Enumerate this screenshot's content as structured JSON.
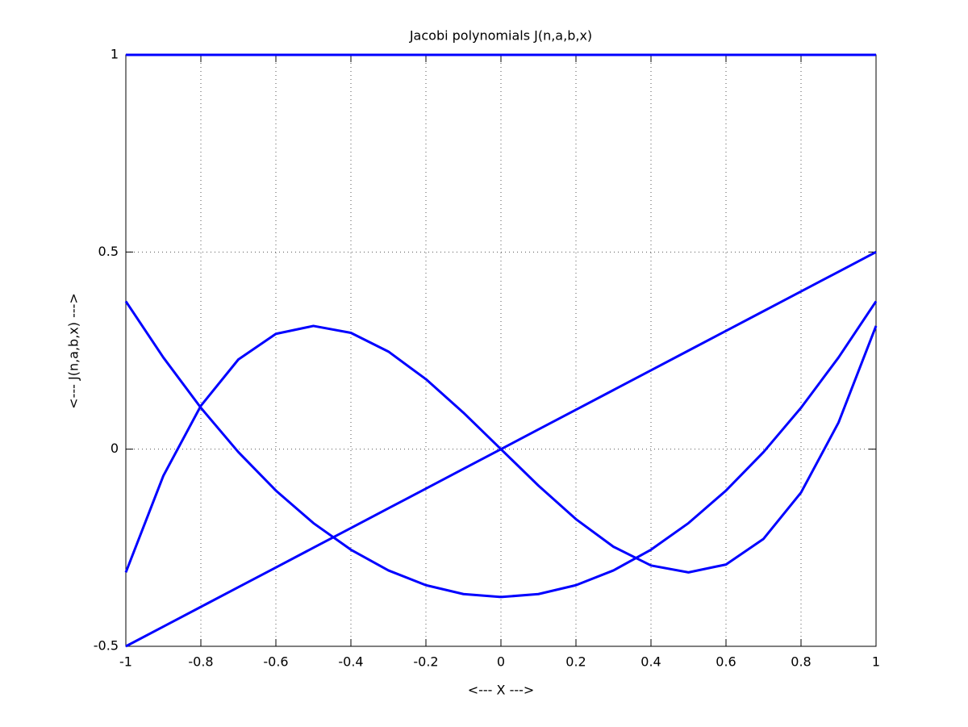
{
  "chart_data": {
    "type": "line",
    "title": "Jacobi polynomials J(n,a,b,x)",
    "x_label": "<--- X --->",
    "y_label": "<--- J(n,a,b,x) --->",
    "x": [
      -1,
      -0.9,
      -0.8,
      -0.7,
      -0.6,
      -0.5,
      -0.4,
      -0.3,
      -0.2,
      -0.1,
      0,
      0.1,
      0.2,
      0.3,
      0.4,
      0.5,
      0.6,
      0.7,
      0.8,
      0.9,
      1
    ],
    "series": [
      {
        "color": "#0000ff",
        "values": [
          1,
          1,
          1,
          1,
          1,
          1,
          1,
          1,
          1,
          1,
          1,
          1,
          1,
          1,
          1,
          1,
          1,
          1,
          1,
          1,
          1
        ]
      },
      {
        "color": "#0000ff",
        "values": [
          -0.5,
          -0.45,
          -0.4,
          -0.35,
          -0.3,
          -0.25,
          -0.2,
          -0.15,
          -0.1,
          -0.05,
          0,
          0.05,
          0.1,
          0.15,
          0.2,
          0.25,
          0.3,
          0.35,
          0.4,
          0.45,
          0.5
        ]
      },
      {
        "color": "#0000ff",
        "values": [
          0.375,
          0.2325,
          0.105,
          -0.0075,
          -0.105,
          -0.1875,
          -0.255,
          -0.3075,
          -0.345,
          -0.3675,
          -0.375,
          -0.3675,
          -0.345,
          -0.3075,
          -0.255,
          -0.1875,
          -0.105,
          -0.0075,
          0.105,
          0.2325,
          0.375
        ]
      },
      {
        "color": "#0000ff",
        "values": [
          -0.3125,
          -0.0675,
          0.11,
          0.2275,
          0.2925,
          0.3125,
          0.295,
          0.2475,
          0.1775,
          0.0925,
          0,
          -0.0925,
          -0.1775,
          -0.2475,
          -0.295,
          -0.3125,
          -0.2925,
          -0.2275,
          -0.11,
          0.0675,
          0.3125
        ]
      }
    ],
    "xlim": [
      -1,
      1
    ],
    "xticks": [
      -1,
      -0.8,
      -0.6,
      -0.4,
      -0.2,
      0,
      0.2,
      0.4,
      0.6,
      0.8,
      1
    ],
    "ylim": [
      -0.5,
      1
    ],
    "yticks": [
      -0.5,
      0,
      0.5,
      1
    ],
    "grid": true
  }
}
